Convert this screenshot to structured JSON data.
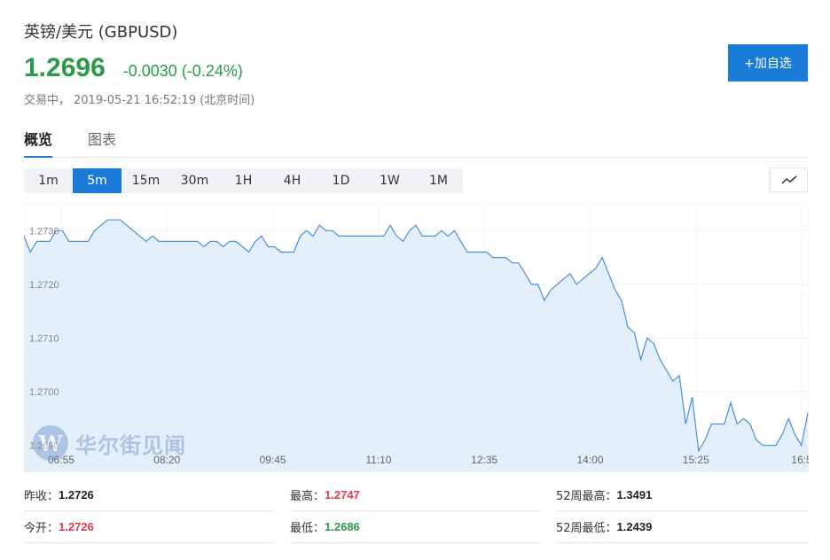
{
  "header": {
    "title": "英镑/美元  (GBPUSD)",
    "price": "1.2696",
    "change": "-0.0030 (-0.24%)",
    "status_label": "交易中，",
    "status_time": "2019-05-21 16:52:19 (北京时间)",
    "add_button": "+加自选"
  },
  "tabs": [
    "概览",
    "图表"
  ],
  "periods": [
    "1m",
    "5m",
    "15m",
    "30m",
    "1H",
    "4H",
    "1D",
    "1W",
    "1M"
  ],
  "active_period": "5m",
  "watermark": {
    "letter": "W",
    "text": "华尔街见闻"
  },
  "chart_data": {
    "type": "area",
    "ylim": [
      1.2685,
      1.2735
    ],
    "yticks": [
      "1.2730",
      "1.2720",
      "1.2710",
      "1.2700",
      "1.2690"
    ],
    "xticks": [
      "06:55",
      "08:20",
      "09:45",
      "11:10",
      "12:35",
      "14:00",
      "15:25",
      "16:5"
    ],
    "series": [
      {
        "values": [
          1.2729,
          1.2726,
          1.2728,
          1.2728,
          1.2728,
          1.273,
          1.273,
          1.2728,
          1.2728,
          1.2728,
          1.2728,
          1.273,
          1.2731,
          1.2732,
          1.2732,
          1.2732,
          1.2731,
          1.273,
          1.2729,
          1.2728,
          1.2729,
          1.2728,
          1.2728,
          1.2728,
          1.2728,
          1.2728,
          1.2728,
          1.2728,
          1.2727,
          1.2728,
          1.2728,
          1.2727,
          1.2728,
          1.2728,
          1.2727,
          1.2726,
          1.2728,
          1.2729,
          1.2727,
          1.2727,
          1.2726,
          1.2726,
          1.2726,
          1.2729,
          1.273,
          1.2729,
          1.2731,
          1.273,
          1.273,
          1.2729,
          1.2729,
          1.2729,
          1.2729,
          1.2729,
          1.2729,
          1.2729,
          1.2729,
          1.2731,
          1.2729,
          1.2728,
          1.273,
          1.2731,
          1.2729,
          1.2729,
          1.2729,
          1.273,
          1.2729,
          1.273,
          1.2728,
          1.2726,
          1.2726,
          1.2726,
          1.2726,
          1.2725,
          1.2725,
          1.2725,
          1.2724,
          1.2724,
          1.2722,
          1.272,
          1.272,
          1.2717,
          1.2719,
          1.272,
          1.2721,
          1.2722,
          1.272,
          1.2721,
          1.2722,
          1.2723,
          1.2725,
          1.2722,
          1.2719,
          1.2717,
          1.2712,
          1.2711,
          1.2706,
          1.271,
          1.2709,
          1.2706,
          1.2704,
          1.2702,
          1.2703,
          1.2694,
          1.2699,
          1.2689,
          1.2691,
          1.2694,
          1.2694,
          1.2694,
          1.2698,
          1.2694,
          1.2695,
          1.2694,
          1.2691,
          1.269,
          1.269,
          1.269,
          1.2692,
          1.2695,
          1.2692,
          1.269,
          1.2696
        ]
      }
    ]
  },
  "stats": [
    [
      {
        "label": "昨收：",
        "value": "1.2726",
        "color": "#222222"
      },
      {
        "label": "最高：",
        "value": "1.2747",
        "color": "#e8364b"
      },
      {
        "label": "52周最高：",
        "value": "1.3491",
        "color": "#222222"
      }
    ],
    [
      {
        "label": "今开：",
        "value": "1.2726",
        "color": "#e8364b"
      },
      {
        "label": "最低：",
        "value": "1.2686",
        "color": "#2a9a4a"
      },
      {
        "label": "52周最低：",
        "value": "1.2439",
        "color": "#222222"
      }
    ]
  ],
  "colors": {
    "accent": "#1a7cd8",
    "down": "#2a9a4a",
    "up": "#e8364b",
    "line": "#4a90d9",
    "fill": "#e3effb"
  }
}
